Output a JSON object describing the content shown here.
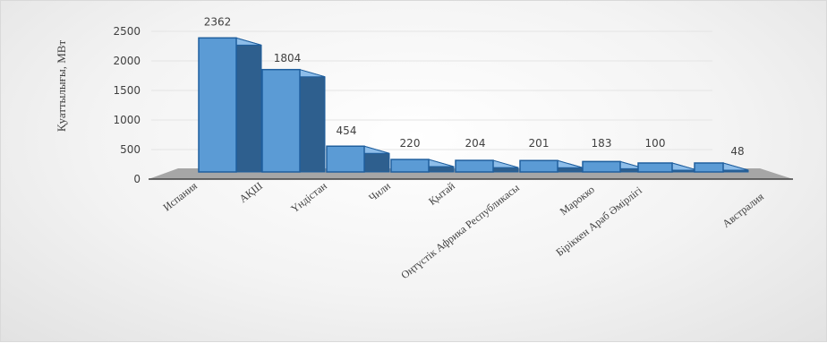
{
  "chart_data": {
    "type": "bar",
    "title": "",
    "xlabel": "",
    "ylabel": "Қуаттылығы, МВт",
    "categories": [
      "Испания",
      "АҚШ",
      "Үндістан",
      "Чили",
      "Қытай",
      "Оңтүстік Африка Республикасы",
      "Марокко",
      "Біріккен Араб Әмірлігі",
      "Австралия"
    ],
    "values": [
      2362,
      1804,
      454,
      220,
      204,
      201,
      183,
      100,
      48
    ],
    "data_labels": [
      "2362",
      "1804",
      "454",
      "220",
      "204",
      "201",
      "183",
      "100",
      "48"
    ],
    "yticks": [
      "0",
      "500",
      "1000",
      "1500",
      "2000",
      "2500"
    ],
    "ylim": [
      0,
      2500
    ],
    "grid": true,
    "legend": "none",
    "colors": {
      "bar_front": "#5b9bd5",
      "bar_side": "#2e5f8e",
      "bar_top": "#8dbde9",
      "bar_edge": "#1f5f9e",
      "floor": "#a6a6a6",
      "gridline": "#e4e4e4"
    }
  }
}
